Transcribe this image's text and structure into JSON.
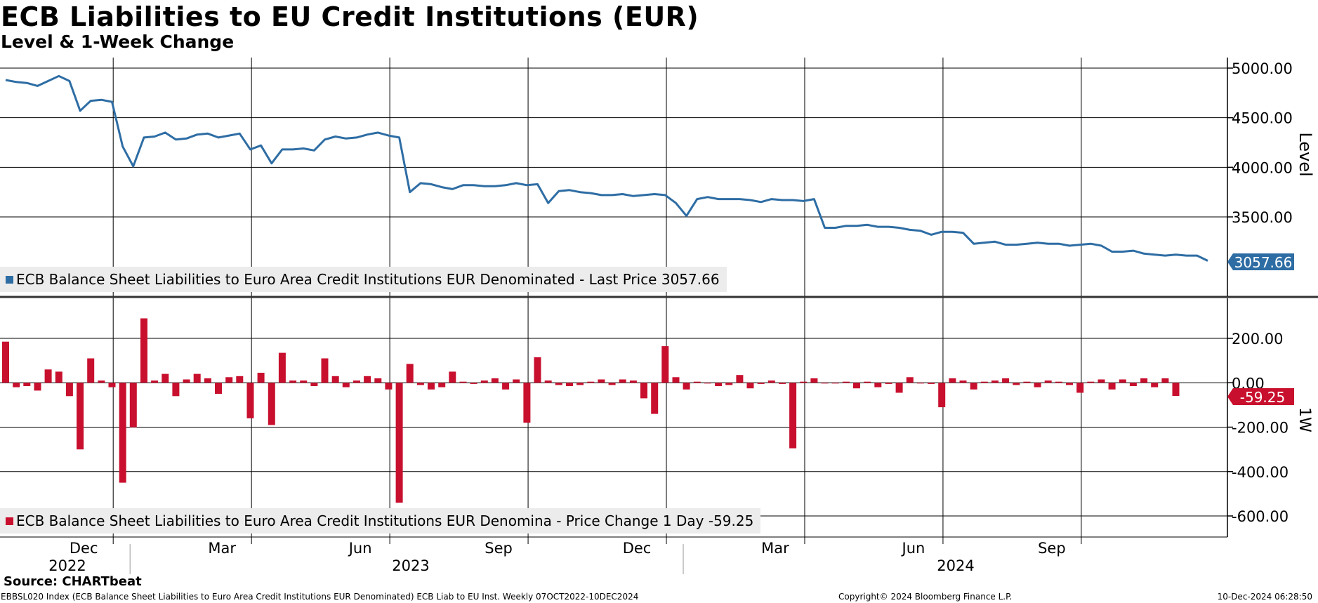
{
  "header": {
    "title": "ECB Liabilities to EU Credit Institutions (EUR)",
    "subtitle": "Level & 1-Week Change"
  },
  "colors": {
    "level": "#2e6da4",
    "change": "#c8102e",
    "grid": "#000000",
    "badge_blue": "#2e6da4",
    "badge_red": "#c8102e"
  },
  "chart_data": [
    {
      "type": "line",
      "panel": "top",
      "ylabel": "Level",
      "ylim": [
        2700,
        5100
      ],
      "yticks": [
        "5000.00",
        "4500.00",
        "4000.00",
        "3500.00"
      ],
      "ytick_values": [
        5000,
        4500,
        4000,
        3500
      ],
      "x_labels": [
        "Dec",
        "Mar",
        "Jun",
        "Sep",
        "Dec",
        "Mar",
        "Jun",
        "Sep"
      ],
      "year_labels": [
        "2022",
        "2023",
        "2024"
      ],
      "series": [
        {
          "name": "ECB Balance Sheet Liabilities to Euro Area Credit Institutions EUR Denominated - Last Price",
          "values": [
            4880,
            4860,
            4850,
            4820,
            4870,
            4920,
            4870,
            4570,
            4670,
            4680,
            4660,
            4210,
            4010,
            4300,
            4310,
            4350,
            4280,
            4290,
            4330,
            4340,
            4300,
            4320,
            4340,
            4180,
            4220,
            4040,
            4180,
            4180,
            4190,
            4170,
            4280,
            4310,
            4290,
            4300,
            4330,
            4350,
            4320,
            4300,
            3750,
            3840,
            3830,
            3800,
            3780,
            3820,
            3820,
            3810,
            3810,
            3820,
            3840,
            3820,
            3830,
            3640,
            3760,
            3770,
            3750,
            3740,
            3720,
            3720,
            3730,
            3710,
            3720,
            3730,
            3720,
            3640,
            3510,
            3680,
            3700,
            3680,
            3680,
            3680,
            3670,
            3650,
            3680,
            3670,
            3670,
            3660,
            3680,
            3390,
            3390,
            3410,
            3410,
            3420,
            3400,
            3400,
            3390,
            3370,
            3360,
            3320,
            3350,
            3350,
            3340,
            3230,
            3240,
            3250,
            3220,
            3220,
            3230,
            3240,
            3230,
            3230,
            3210,
            3220,
            3230,
            3210,
            3150,
            3150,
            3160,
            3130,
            3120,
            3110,
            3120,
            3110,
            3110,
            3057.66
          ],
          "last": "3057.66"
        }
      ],
      "legend": "ECB Balance Sheet Liabilities to Euro Area Credit Institutions EUR Denominated - Last Price 3057.66"
    },
    {
      "type": "bar",
      "panel": "bottom",
      "ylabel": "1W",
      "ylim": [
        -680,
        370
      ],
      "yticks": [
        "200.00",
        "0.00",
        "-200.00",
        "-400.00",
        "-600.00"
      ],
      "ytick_values": [
        200,
        0,
        -200,
        -400,
        -600
      ],
      "series": [
        {
          "name": "ECB Balance Sheet Liabilities to Euro Area Credit Institutions EUR Denomina - Price Change 1 Day",
          "values": [
            185,
            -20,
            -15,
            -35,
            60,
            50,
            -60,
            -300,
            110,
            10,
            -20,
            -450,
            -200,
            290,
            10,
            40,
            -60,
            15,
            40,
            20,
            -50,
            25,
            30,
            -160,
            45,
            -190,
            135,
            10,
            10,
            -15,
            110,
            30,
            -20,
            10,
            30,
            20,
            -30,
            -540,
            85,
            -10,
            -30,
            -20,
            50,
            5,
            -5,
            10,
            20,
            -30,
            15,
            -180,
            115,
            10,
            -10,
            -15,
            -10,
            5,
            15,
            -10,
            15,
            10,
            -70,
            -140,
            165,
            25,
            -30,
            5,
            0,
            -15,
            -10,
            35,
            -25,
            -5,
            10,
            -5,
            -295,
            5,
            20,
            0,
            0,
            5,
            -25,
            5,
            -20,
            -5,
            -45,
            25,
            0,
            -5,
            -110,
            20,
            10,
            -30,
            5,
            10,
            20,
            -10,
            5,
            -20,
            10,
            5,
            -10,
            -45,
            5,
            15,
            -30,
            15,
            -15,
            20,
            -20,
            20,
            -59.25
          ],
          "last": "-59.25"
        }
      ],
      "legend": "ECB Balance Sheet Liabilities to Euro Area Credit Institutions EUR Denomina - Price Change 1 Day -59.25"
    }
  ],
  "legend_top": {
    "text": "ECB Balance Sheet Liabilities to Euro Area Credit Institutions EUR Denominated - Last Price 3057.66"
  },
  "legend_bottom": {
    "text": "ECB Balance Sheet Liabilities to Euro Area Credit Institutions EUR Denomina - Price Change 1 Day -59.25"
  },
  "footer": {
    "source": "Source: CHARTbeat",
    "left": "EBBSL020 Index (ECB Balance Sheet Liabilities to Euro Area Credit Institutions EUR Denominated) ECB Liab to EU Inst.  Weekly 07OCT2022-10DEC2024",
    "middle": "Copyright© 2024 Bloomberg Finance L.P.",
    "right": "10-Dec-2024 06:28:50"
  }
}
